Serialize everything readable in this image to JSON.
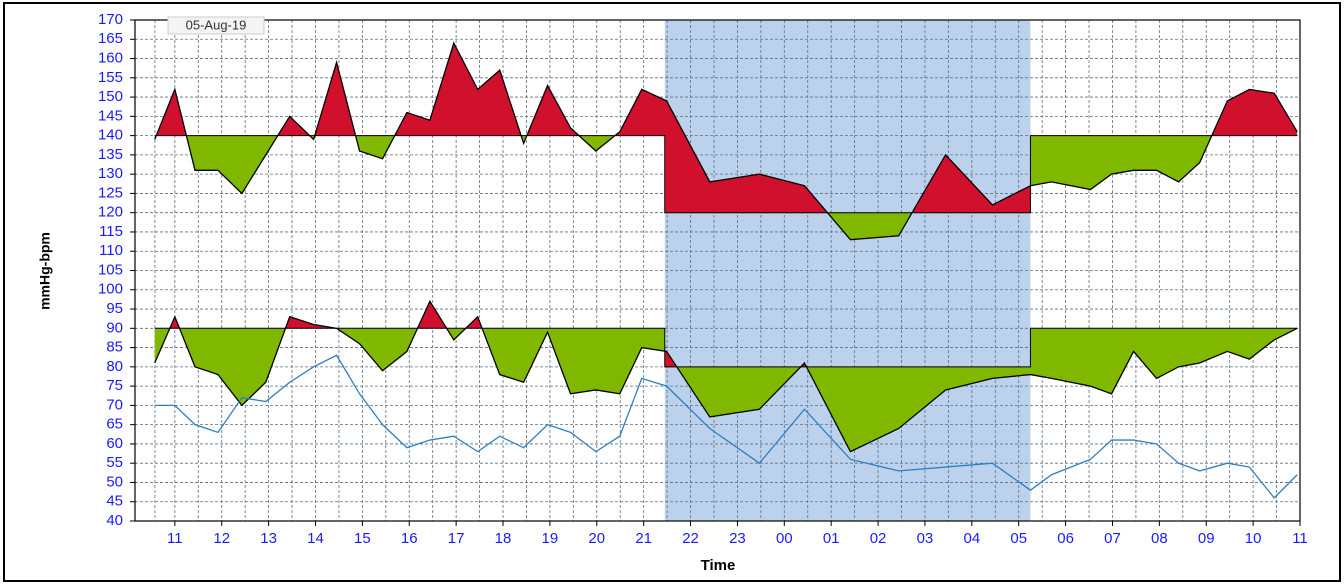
{
  "chart_data": {
    "type": "threshold-line",
    "date_label": "05-Aug-19",
    "ylabel": "mmHg-bpm",
    "xlabel": "Time",
    "x": [
      10.57,
      11.0,
      11.43,
      11.92,
      12.43,
      12.94,
      13.45,
      13.96,
      14.45,
      14.94,
      15.43,
      15.95,
      16.44,
      16.95,
      17.46,
      17.93,
      18.44,
      18.95,
      19.44,
      19.98,
      20.49,
      20.96,
      21.49,
      22.41,
      23.47,
      24.43,
      25.41,
      26.44,
      27.44,
      28.44,
      29.25,
      29.7,
      30.53,
      30.98,
      31.45,
      31.94,
      32.41,
      32.86,
      33.45,
      33.92,
      34.45,
      34.94
    ],
    "series": [
      {
        "color": "#000000",
        "fill_above": "#d0102c",
        "fill_below": "#80b800",
        "threshold_day": 140,
        "threshold_night": 120,
        "values": [
          139,
          152,
          131,
          131,
          125,
          135,
          145,
          139,
          159,
          136,
          134,
          146,
          144,
          164,
          152,
          157,
          138,
          153,
          142,
          136,
          141,
          152,
          149,
          128,
          130,
          127,
          113,
          114,
          135,
          122,
          127,
          128,
          126,
          130,
          131,
          131,
          128,
          133,
          149,
          152,
          151,
          141
        ]
      },
      {
        "color": "#000000",
        "fill_above": "#d0102c",
        "fill_below": "#80b800",
        "threshold_day": 90,
        "threshold_night": 80,
        "values": [
          81,
          93,
          80,
          78,
          70,
          76,
          93,
          91,
          90,
          86,
          79,
          84,
          97,
          87,
          93,
          78,
          76,
          89,
          73,
          74,
          73,
          85,
          84,
          67,
          69,
          81,
          58,
          64,
          74,
          77,
          78,
          77,
          75,
          73,
          84,
          77,
          80,
          81,
          84,
          82,
          87,
          90
        ]
      },
      {
        "color": "#2f7fc0",
        "values": [
          70,
          70,
          65,
          63,
          72,
          71,
          76,
          80,
          83,
          73,
          65,
          59,
          61,
          62,
          58,
          62,
          59,
          65,
          63,
          58,
          62,
          77,
          75,
          64,
          55,
          69,
          56,
          53,
          54,
          55,
          48,
          52,
          56,
          61,
          61,
          60,
          55,
          53,
          55,
          54,
          46,
          52
        ]
      }
    ],
    "night": {
      "start": 21.45,
      "end": 29.25,
      "color": "#bcd2ec"
    },
    "xlim": [
      10.15,
      35.0
    ],
    "xticks": [
      11,
      12,
      13,
      14,
      15,
      16,
      17,
      18,
      19,
      20,
      21,
      22,
      23,
      {
        "value": 24,
        "label": "00"
      },
      {
        "value": 25,
        "label": "01"
      },
      {
        "value": 26,
        "label": "02"
      },
      {
        "value": 27,
        "label": "03"
      },
      {
        "value": 28,
        "label": "04"
      },
      {
        "value": 29,
        "label": "05"
      },
      {
        "value": 30,
        "label": "06"
      },
      {
        "value": 31,
        "label": "07"
      },
      {
        "value": 32,
        "label": "08"
      },
      {
        "value": 33,
        "label": "09"
      },
      {
        "value": 34,
        "label": "10"
      },
      {
        "value": 35,
        "label": "11"
      }
    ],
    "ylim": [
      40,
      170
    ],
    "yticks": [
      40,
      45,
      50,
      55,
      60,
      65,
      70,
      75,
      80,
      85,
      90,
      95,
      100,
      105,
      110,
      115,
      120,
      125,
      130,
      135,
      140,
      145,
      150,
      155,
      160,
      165,
      170
    ],
    "grid": true
  }
}
